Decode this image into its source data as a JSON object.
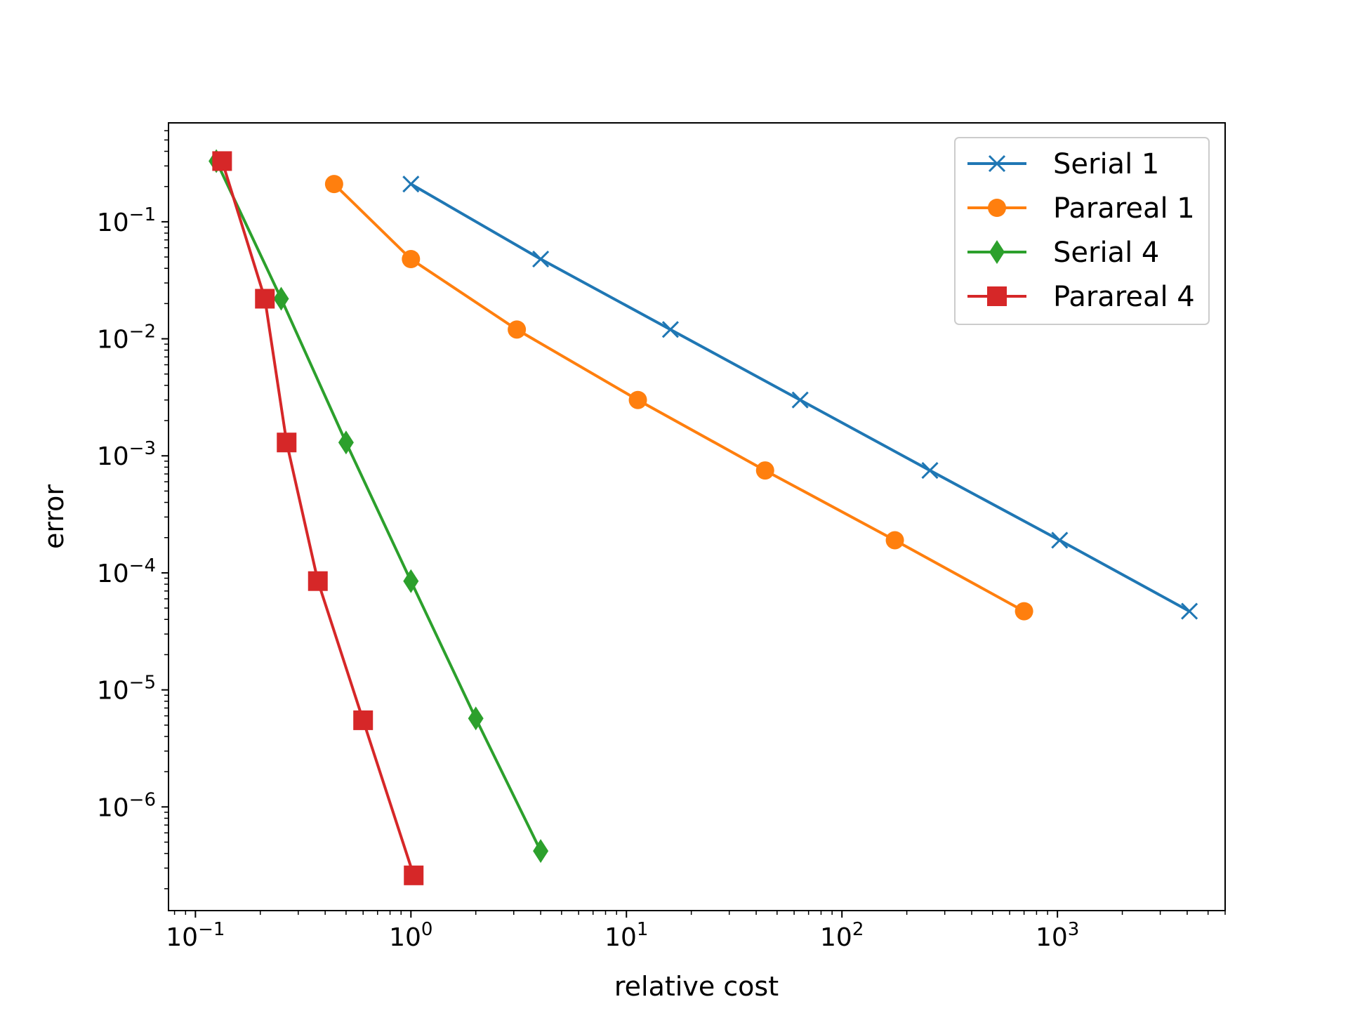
{
  "chart_data": {
    "type": "line",
    "title": "",
    "xlabel": "relative cost",
    "ylabel": "error",
    "xscale": "log",
    "yscale": "log",
    "xlim": [
      0.075,
      6000
    ],
    "ylim": [
      1.3e-07,
      0.7
    ],
    "grid": false,
    "legend_position": "top-right",
    "x_ticks": [
      {
        "value": 0.1,
        "mantissa": "10",
        "exponent": "−1"
      },
      {
        "value": 1,
        "mantissa": "10",
        "exponent": "0"
      },
      {
        "value": 10,
        "mantissa": "10",
        "exponent": "1"
      },
      {
        "value": 100,
        "mantissa": "10",
        "exponent": "2"
      },
      {
        "value": 1000,
        "mantissa": "10",
        "exponent": "3"
      }
    ],
    "y_ticks": [
      {
        "value": 0.1,
        "mantissa": "10",
        "exponent": "−1"
      },
      {
        "value": 0.01,
        "mantissa": "10",
        "exponent": "−2"
      },
      {
        "value": 0.001,
        "mantissa": "10",
        "exponent": "−3"
      },
      {
        "value": 0.0001,
        "mantissa": "10",
        "exponent": "−4"
      },
      {
        "value": 1e-05,
        "mantissa": "10",
        "exponent": "−5"
      },
      {
        "value": 1e-06,
        "mantissa": "10",
        "exponent": "−6"
      }
    ],
    "series": [
      {
        "name": "Serial 1",
        "color": "#1f77b4",
        "marker": "x",
        "x": [
          1,
          4,
          16,
          64,
          256,
          1024,
          4096
        ],
        "y": [
          0.21,
          0.048,
          0.012,
          0.003,
          0.00075,
          0.00019,
          4.7e-05
        ]
      },
      {
        "name": "Parareal 1",
        "color": "#ff7f0e",
        "marker": "circle",
        "x": [
          0.44,
          1.0,
          3.1,
          11.3,
          44,
          176,
          700
        ],
        "y": [
          0.21,
          0.048,
          0.012,
          0.003,
          0.00075,
          0.00019,
          4.7e-05
        ]
      },
      {
        "name": "Serial 4",
        "color": "#2ca02c",
        "marker": "diamond",
        "x": [
          0.125,
          0.25,
          0.5,
          1.0,
          2.0,
          4.0
        ],
        "y": [
          0.33,
          0.022,
          0.0013,
          8.5e-05,
          5.7e-06,
          4.2e-07
        ]
      },
      {
        "name": "Parareal 4",
        "color": "#d62728",
        "marker": "square",
        "x": [
          0.133,
          0.21,
          0.265,
          0.37,
          0.6,
          1.03
        ],
        "y": [
          0.33,
          0.022,
          0.0013,
          8.5e-05,
          5.5e-06,
          2.6e-07
        ]
      }
    ]
  }
}
